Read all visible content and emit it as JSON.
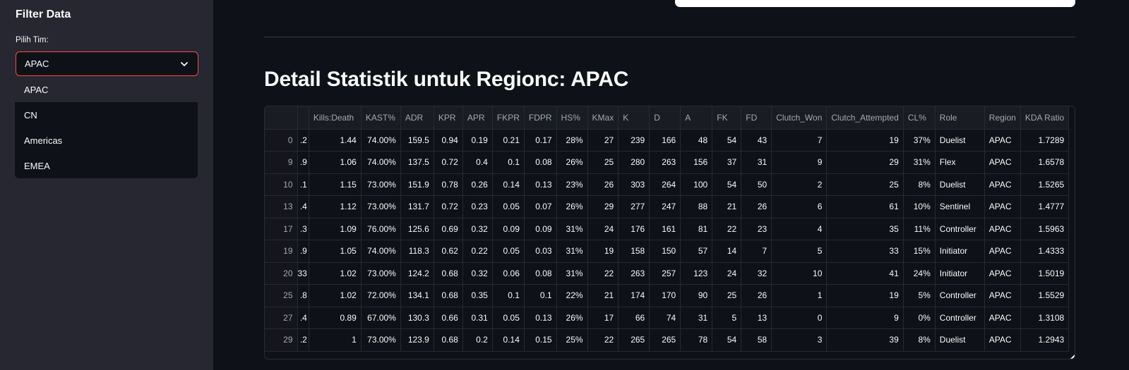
{
  "sidebar": {
    "title": "Filter Data",
    "select_label": "Pilih Tim:",
    "selected": "APAC",
    "options": [
      "APAC",
      "CN",
      "Americas",
      "EMEA"
    ]
  },
  "main": {
    "title": "Detail Statistik untuk Regionc: APAC",
    "table": {
      "columns": [
        "",
        "",
        "Kills:Death",
        "KAST%",
        "ADR",
        "KPR",
        "APR",
        "FKPR",
        "FDPR",
        "HS%",
        "KMax",
        "K",
        "D",
        "A",
        "FK",
        "FD",
        "Clutch_Won",
        "Clutch_Attempted",
        "CL%",
        "Role",
        "Region",
        "KDA Ratio"
      ],
      "rows": [
        [
          "0",
          ".2",
          "1.44",
          "74.00%",
          "159.5",
          "0.94",
          "0.19",
          "0.21",
          "0.17",
          "28%",
          "27",
          "239",
          "166",
          "48",
          "54",
          "43",
          "7",
          "19",
          "37%",
          "Duelist",
          "APAC",
          "1.7289"
        ],
        [
          "9",
          ".9",
          "1.06",
          "74.00%",
          "137.5",
          "0.72",
          "0.4",
          "0.1",
          "0.08",
          "26%",
          "25",
          "280",
          "263",
          "156",
          "37",
          "31",
          "9",
          "29",
          "31%",
          "Flex",
          "APAC",
          "1.6578"
        ],
        [
          "10",
          ".1",
          "1.15",
          "73.00%",
          "151.9",
          "0.78",
          "0.26",
          "0.14",
          "0.13",
          "23%",
          "26",
          "303",
          "264",
          "100",
          "54",
          "50",
          "2",
          "25",
          "8%",
          "Duelist",
          "APAC",
          "1.5265"
        ],
        [
          "13",
          ".4",
          "1.12",
          "73.00%",
          "131.7",
          "0.72",
          "0.23",
          "0.05",
          "0.07",
          "26%",
          "29",
          "277",
          "247",
          "88",
          "21",
          "26",
          "6",
          "61",
          "10%",
          "Sentinel",
          "APAC",
          "1.4777"
        ],
        [
          "17",
          ".3",
          "1.09",
          "76.00%",
          "125.6",
          "0.69",
          "0.32",
          "0.09",
          "0.09",
          "31%",
          "24",
          "176",
          "161",
          "81",
          "22",
          "23",
          "4",
          "35",
          "11%",
          "Controller",
          "APAC",
          "1.5963"
        ],
        [
          "19",
          ".9",
          "1.05",
          "74.00%",
          "118.3",
          "0.62",
          "0.22",
          "0.05",
          "0.03",
          "31%",
          "19",
          "158",
          "150",
          "57",
          "14",
          "7",
          "5",
          "33",
          "15%",
          "Initiator",
          "APAC",
          "1.4333"
        ],
        [
          "20",
          "33",
          "1.02",
          "73.00%",
          "124.2",
          "0.68",
          "0.32",
          "0.06",
          "0.08",
          "31%",
          "22",
          "263",
          "257",
          "123",
          "24",
          "32",
          "10",
          "41",
          "24%",
          "Initiator",
          "APAC",
          "1.5019"
        ],
        [
          "25",
          ".8",
          "1.02",
          "72.00%",
          "134.1",
          "0.68",
          "0.35",
          "0.1",
          "0.1",
          "22%",
          "21",
          "174",
          "170",
          "90",
          "25",
          "26",
          "1",
          "19",
          "5%",
          "Controller",
          "APAC",
          "1.5529"
        ],
        [
          "27",
          ".4",
          "0.89",
          "67.00%",
          "130.3",
          "0.66",
          "0.31",
          "0.05",
          "0.13",
          "26%",
          "17",
          "66",
          "74",
          "31",
          "5",
          "13",
          "0",
          "9",
          "0%",
          "Controller",
          "APAC",
          "1.3108"
        ],
        [
          "29",
          ".2",
          "1",
          "73.00%",
          "123.9",
          "0.68",
          "0.2",
          "0.14",
          "0.15",
          "25%",
          "22",
          "265",
          "265",
          "78",
          "54",
          "58",
          "3",
          "39",
          "8%",
          "Duelist",
          "APAC",
          "1.2943"
        ]
      ]
    }
  },
  "icons": {
    "select_chevron": "chevron-down-icon"
  }
}
